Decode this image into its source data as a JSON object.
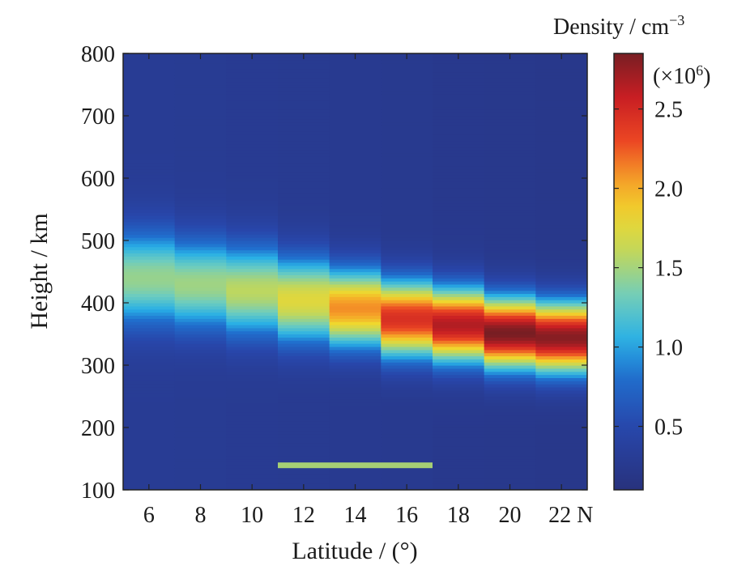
{
  "chart_data": {
    "type": "heatmap",
    "xlabel": "Latitude / (°)",
    "ylabel": "Height / km",
    "colorbar_label": "Density / cm",
    "colorbar_label_exponent": "−3",
    "colorbar_scale_prefix": "(×10",
    "colorbar_scale_exponent": "6",
    "colorbar_scale_suffix": ")",
    "xlim": [
      5,
      23
    ],
    "ylim": [
      100,
      800
    ],
    "x_ticks": [
      6,
      8,
      10,
      12,
      14,
      16,
      18,
      20,
      22
    ],
    "x_tick_labels": [
      "6",
      "8",
      "10",
      "12",
      "14",
      "16",
      "18",
      "20",
      "22 N"
    ],
    "y_ticks": [
      100,
      200,
      300,
      400,
      500,
      600,
      700,
      800
    ],
    "y_tick_labels": [
      "100",
      "200",
      "300",
      "400",
      "500",
      "600",
      "700",
      "800"
    ],
    "colorbar_range": [
      0.1,
      2.85
    ],
    "colorbar_ticks": [
      0.5,
      1.0,
      1.5,
      2.0,
      2.5
    ],
    "colorbar_tick_labels": [
      "0.5",
      "1.0",
      "1.5",
      "2.0",
      "2.5"
    ],
    "colormap": "jet",
    "columns": [
      {
        "lat_start": 5,
        "lat_end": 7,
        "peak_height_km": 440,
        "peak_density": 1.45,
        "width_km": 75,
        "background": 0.3
      },
      {
        "lat_start": 7,
        "lat_end": 9,
        "peak_height_km": 430,
        "peak_density": 1.48,
        "width_km": 72,
        "background": 0.29
      },
      {
        "lat_start": 9,
        "lat_end": 11,
        "peak_height_km": 420,
        "peak_density": 1.58,
        "width_km": 72,
        "background": 0.28
      },
      {
        "lat_start": 11,
        "lat_end": 13,
        "peak_height_km": 405,
        "peak_density": 1.75,
        "width_km": 68,
        "background": 0.27
      },
      {
        "lat_start": 13,
        "lat_end": 15,
        "peak_height_km": 392,
        "peak_density": 2.1,
        "width_km": 62,
        "background": 0.26
      },
      {
        "lat_start": 15,
        "lat_end": 17,
        "peak_height_km": 375,
        "peak_density": 2.45,
        "width_km": 60,
        "background": 0.25
      },
      {
        "lat_start": 17,
        "lat_end": 19,
        "peak_height_km": 365,
        "peak_density": 2.65,
        "width_km": 58,
        "background": 0.24
      },
      {
        "lat_start": 19,
        "lat_end": 21,
        "peak_height_km": 352,
        "peak_density": 2.85,
        "width_km": 56,
        "background": 0.23
      },
      {
        "lat_start": 21,
        "lat_end": 23,
        "peak_height_km": 345,
        "peak_density": 2.8,
        "width_km": 56,
        "background": 0.22
      }
    ],
    "annotation_bar": {
      "lat_start": 11,
      "lat_end": 17,
      "height_km": 140,
      "color": "#a6cf74"
    }
  }
}
